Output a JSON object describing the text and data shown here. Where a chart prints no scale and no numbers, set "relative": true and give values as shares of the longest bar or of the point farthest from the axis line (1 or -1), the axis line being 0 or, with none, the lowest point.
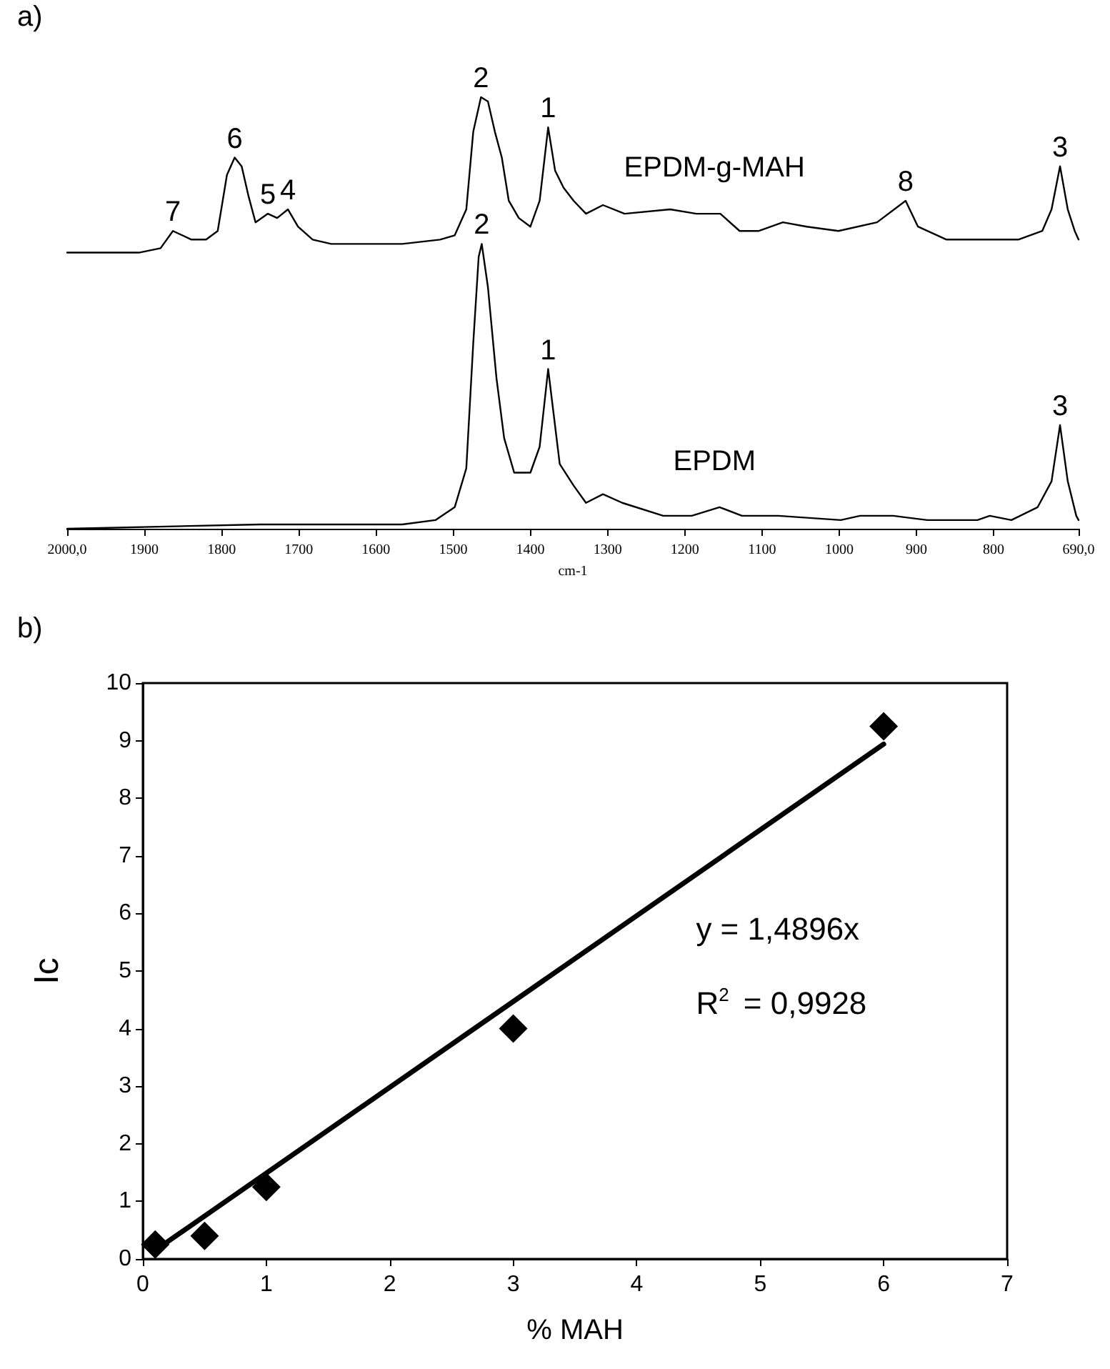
{
  "chart_data": [
    {
      "type": "line",
      "relative": true,
      "xlabel": "cm-1",
      "xlim": [
        2000,
        690
      ],
      "xticks": [
        {
          "value": 2000,
          "label": "2000,0"
        },
        1900,
        1800,
        1700,
        1600,
        1500,
        1400,
        1300,
        1200,
        1100,
        1000,
        900,
        800,
        {
          "value": 690,
          "label": "690,0"
        }
      ],
      "series": [
        {
          "name": "EPDM-g-MAH",
          "color": "#000000",
          "x": [
            2000,
            1906,
            1879,
            1863,
            1839,
            1820,
            1805,
            1793,
            1783,
            1774,
            1765,
            1756,
            1740,
            1728,
            1714,
            1701,
            1682,
            1658,
            1566,
            1517,
            1498,
            1483,
            1474,
            1464,
            1455,
            1446,
            1437,
            1428,
            1415,
            1400,
            1388,
            1377,
            1368,
            1357,
            1344,
            1328,
            1306,
            1278,
            1219,
            1185,
            1154,
            1129,
            1104,
            1073,
            1042,
            1001,
            951,
            914,
            898,
            861,
            830,
            802,
            768,
            737,
            725,
            714,
            704,
            695,
            690
          ],
          "values": [
            0.64,
            0.64,
            0.65,
            0.69,
            0.67,
            0.67,
            0.69,
            0.82,
            0.86,
            0.84,
            0.77,
            0.71,
            0.73,
            0.72,
            0.74,
            0.7,
            0.67,
            0.66,
            0.66,
            0.67,
            0.68,
            0.74,
            0.92,
            1.0,
            0.99,
            0.92,
            0.86,
            0.76,
            0.72,
            0.7,
            0.76,
            0.93,
            0.83,
            0.79,
            0.76,
            0.73,
            0.75,
            0.73,
            0.74,
            0.73,
            0.73,
            0.69,
            0.69,
            0.71,
            0.7,
            0.69,
            0.71,
            0.76,
            0.7,
            0.67,
            0.67,
            0.67,
            0.67,
            0.69,
            0.74,
            0.84,
            0.74,
            0.69,
            0.67
          ]
        },
        {
          "name": "EPDM",
          "color": "#000000",
          "x": [
            2000,
            1750,
            1695,
            1566,
            1523,
            1498,
            1483,
            1474,
            1467,
            1463,
            1455,
            1444,
            1434,
            1421,
            1400,
            1388,
            1377,
            1362,
            1344,
            1328,
            1306,
            1281,
            1228,
            1191,
            1155,
            1126,
            1079,
            998,
            973,
            930,
            886,
            821,
            805,
            777,
            743,
            725,
            714,
            704,
            693,
            690
          ],
          "values": [
            0.0,
            0.01,
            0.01,
            0.01,
            0.02,
            0.05,
            0.14,
            0.43,
            0.63,
            0.66,
            0.56,
            0.35,
            0.21,
            0.13,
            0.13,
            0.19,
            0.37,
            0.15,
            0.1,
            0.06,
            0.08,
            0.06,
            0.03,
            0.03,
            0.05,
            0.03,
            0.03,
            0.02,
            0.03,
            0.03,
            0.02,
            0.02,
            0.03,
            0.02,
            0.05,
            0.11,
            0.24,
            0.11,
            0.03,
            0.02
          ]
        }
      ],
      "annotations": [
        "a)",
        {
          "text": "7",
          "x": 1863,
          "y": 0.69
        },
        {
          "text": "6",
          "x": 1783,
          "y": 0.86
        },
        {
          "text": "5",
          "x": 1740,
          "y": 0.73
        },
        {
          "text": "4",
          "x": 1714,
          "y": 0.74
        },
        {
          "text": "2",
          "x": 1464,
          "y": 1.0
        },
        {
          "text": "1",
          "x": 1377,
          "y": 0.93
        },
        {
          "text": "8",
          "x": 914,
          "y": 0.76
        },
        {
          "text": "3",
          "x": 714,
          "y": 0.84
        },
        {
          "text": "2",
          "x": 1463,
          "y": 0.66
        },
        {
          "text": "1",
          "x": 1377,
          "y": 0.37
        },
        {
          "text": "3",
          "x": 714,
          "y": 0.24
        }
      ]
    },
    {
      "type": "scatter",
      "xlabel": "% MAH",
      "ylabel": "Ic",
      "xlim": [
        0,
        7
      ],
      "xticks": [
        0,
        1,
        2,
        3,
        4,
        5,
        6,
        7
      ],
      "ylim": [
        0,
        10
      ],
      "yticks": [
        0,
        1,
        2,
        3,
        4,
        5,
        6,
        7,
        8,
        9,
        10
      ],
      "series": [
        {
          "color": "#000000",
          "marker": "diamond",
          "x": [
            0.1,
            0.5,
            1,
            3,
            6
          ],
          "values": [
            0.25,
            0.4,
            1.25,
            4.0,
            9.25
          ]
        },
        {
          "type": "line",
          "marker": "none",
          "color": "#000000",
          "x": [
            0.1,
            6
          ],
          "values": [
            0.15,
            8.94
          ]
        }
      ],
      "annotations": [
        "b)",
        "y = 1,4896x",
        "R$^{2}$ = 0,9928"
      ]
    }
  ]
}
